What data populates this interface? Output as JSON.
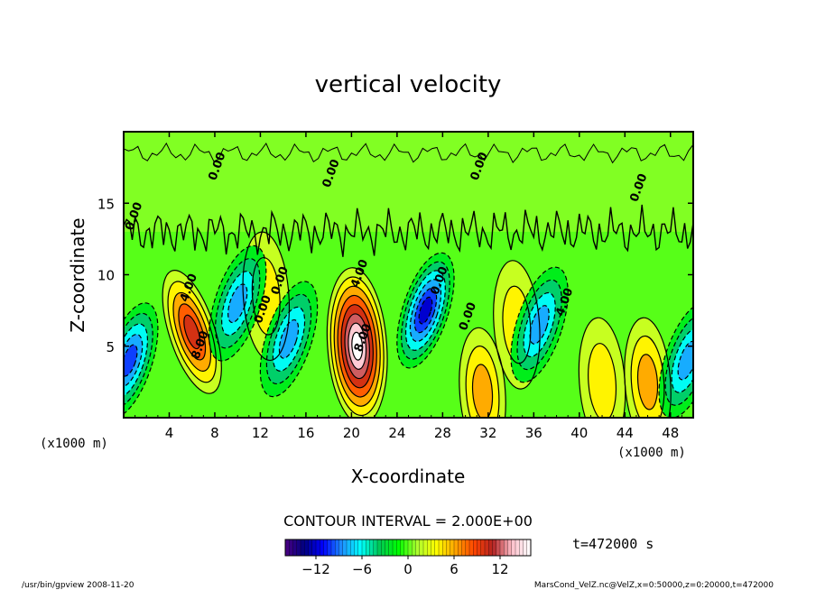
{
  "chart_data": {
    "type": "contour",
    "title": "vertical velocity",
    "xlabel": "X-coordinate",
    "ylabel": "Z-coordinate",
    "x_unit_left": "(x1000 m)",
    "x_unit_right": "(x1000 m)",
    "x_ticks": [
      4,
      8,
      12,
      16,
      20,
      24,
      28,
      32,
      36,
      40,
      44,
      48
    ],
    "y_ticks": [
      5,
      10,
      15
    ],
    "xlim": [
      0,
      50
    ],
    "ylim": [
      0,
      20
    ],
    "contour_interval_text": "CONTOUR INTERVAL = 2.000E+00",
    "time_label": "t=472000 s",
    "colorbar": {
      "range": [
        -16,
        16
      ],
      "tick_values": [
        -12,
        -6,
        0,
        6,
        12
      ],
      "tick_labels": [
        "−12",
        "−6",
        "0",
        "6",
        "12"
      ]
    },
    "contour_labels": [
      {
        "text": "4.00",
        "x": 6.0,
        "y": 9.0
      },
      {
        "text": "8.00",
        "x": 7.0,
        "y": 5.0
      },
      {
        "text": "4.00",
        "x": 21.0,
        "y": 10.0
      },
      {
        "text": "8.00",
        "x": 21.3,
        "y": 5.5
      },
      {
        "text": "0.00",
        "x": 1.2,
        "y": 14.0
      },
      {
        "text": "0.00",
        "x": 8.5,
        "y": 17.5
      },
      {
        "text": "0.00",
        "x": 18.5,
        "y": 17.0
      },
      {
        "text": "0.00",
        "x": 31.5,
        "y": 17.5
      },
      {
        "text": "0.00",
        "x": 45.5,
        "y": 16.0
      },
      {
        "text": "0.00",
        "x": 12.5,
        "y": 7.5
      },
      {
        "text": "0.00",
        "x": 14.0,
        "y": 9.5
      },
      {
        "text": "0.00",
        "x": 28.0,
        "y": 9.5
      },
      {
        "text": "0.00",
        "x": 30.5,
        "y": 7.0
      },
      {
        "text": "4.00",
        "x": 39.0,
        "y": 8.0
      }
    ],
    "features": [
      {
        "type": "updraft",
        "x": 6.0,
        "y": 6.0,
        "peak": 10
      },
      {
        "type": "updraft",
        "x": 20.5,
        "y": 5.0,
        "peak": 17
      },
      {
        "type": "updraft",
        "x": 31.5,
        "y": 1.8,
        "peak": 7
      },
      {
        "type": "updraft",
        "x": 46.0,
        "y": 2.5,
        "peak": 6
      },
      {
        "type": "updraft",
        "x": 42.0,
        "y": 2.5,
        "peak": 5
      },
      {
        "type": "updraft",
        "x": 34.5,
        "y": 6.5,
        "peak": 4
      },
      {
        "type": "updraft",
        "x": 12.5,
        "y": 8.5,
        "peak": 4
      },
      {
        "type": "downdraft",
        "x": 0.5,
        "y": 4.0,
        "peak": -10
      },
      {
        "type": "downdraft",
        "x": 10.0,
        "y": 8.0,
        "peak": -8
      },
      {
        "type": "downdraft",
        "x": 14.5,
        "y": 5.5,
        "peak": -9
      },
      {
        "type": "downdraft",
        "x": 26.5,
        "y": 7.5,
        "peak": -12
      },
      {
        "type": "downdraft",
        "x": 36.5,
        "y": 6.5,
        "peak": -9
      },
      {
        "type": "downdraft",
        "x": 49.5,
        "y": 4.0,
        "peak": -8
      }
    ]
  },
  "footer": {
    "left": "/usr/bin/gpview   2008-11-20",
    "right": "MarsCond_VelZ.nc@VelZ,x=0:50000,z=0:20000,t=472000"
  },
  "colors": {
    "background": "#ffffff",
    "frame": "#000000",
    "contour": "#000000",
    "colormap": [
      "#4b0082",
      "#000080",
      "#0000ff",
      "#1e90ff",
      "#00ffff",
      "#00c853",
      "#00ff00",
      "#adff2f",
      "#ffff00",
      "#ffa500",
      "#ff4500",
      "#b22222",
      "#ffc0cb",
      "#ffffff"
    ]
  }
}
